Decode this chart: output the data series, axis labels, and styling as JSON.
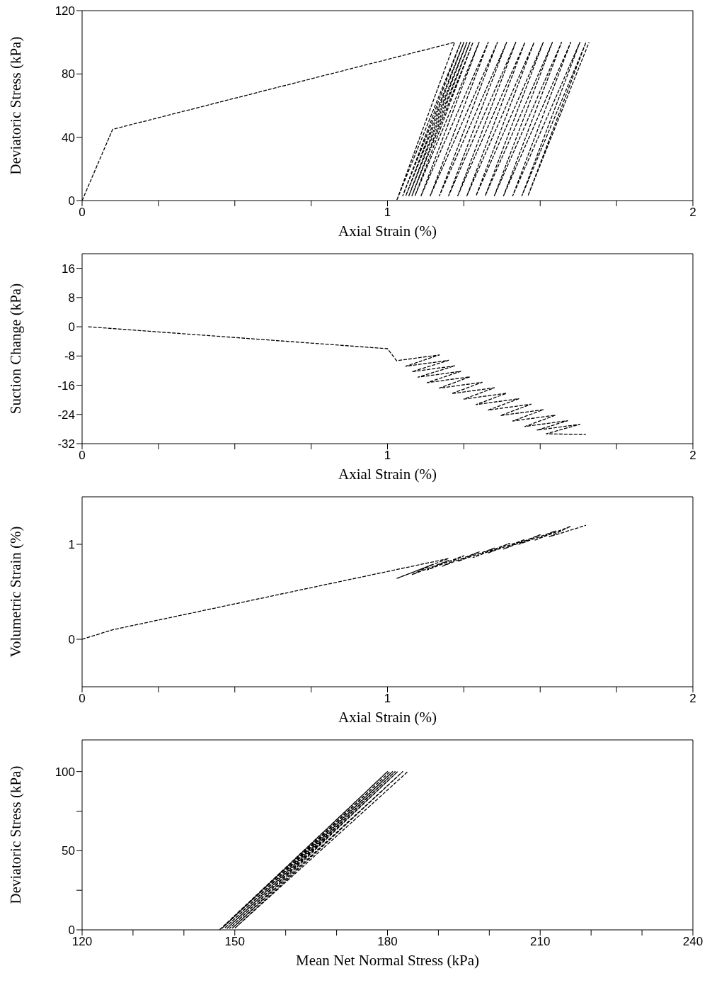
{
  "chart_data": [
    {
      "type": "line",
      "xlabel": "Axial Strain (%)",
      "ylabel": "Deviatoric Stress (kPa)",
      "xlim": [
        0,
        2
      ],
      "ylim": [
        0,
        120
      ],
      "xticks": [
        0,
        {
          "value": 0.25,
          "label": null
        },
        {
          "value": 0.5,
          "label": null
        },
        {
          "value": 0.75,
          "label": null
        },
        1,
        {
          "value": 1.25,
          "label": null
        },
        {
          "value": 1.5,
          "label": null
        },
        {
          "value": 1.75,
          "label": null
        },
        2
      ],
      "yticks": [
        0,
        40,
        80,
        120
      ],
      "line_style": "dashed",
      "marker": "none",
      "series": [
        {
          "color": "#000000",
          "x": [
            0,
            0.1,
            1.22,
            1.03,
            1.24,
            1.05,
            1.25,
            1.06,
            1.26,
            1.07,
            1.27,
            1.08,
            1.28,
            1.09,
            1.3,
            1.11,
            1.33,
            1.14,
            1.36,
            1.17,
            1.39,
            1.2,
            1.42,
            1.23,
            1.45,
            1.26,
            1.48,
            1.29,
            1.51,
            1.32,
            1.54,
            1.35,
            1.57,
            1.38,
            1.6,
            1.41,
            1.63,
            1.44,
            1.65,
            1.46,
            1.66
          ],
          "values": [
            0,
            45,
            100,
            0,
            100,
            3,
            100,
            3,
            100,
            3,
            100,
            3,
            100,
            3,
            100,
            3,
            100,
            3,
            100,
            3,
            100,
            3,
            100,
            3,
            100,
            3,
            100,
            3,
            100,
            3,
            100,
            3,
            100,
            3,
            100,
            3,
            100,
            3,
            100,
            3,
            100
          ]
        }
      ]
    },
    {
      "type": "line",
      "xlabel": "Axial Strain (%)",
      "ylabel": "Suction Change (kPa)",
      "xlim": [
        0,
        2
      ],
      "ylim": [
        -32,
        20
      ],
      "xticks": [
        0,
        {
          "value": 0.25,
          "label": null
        },
        {
          "value": 0.5,
          "label": null
        },
        {
          "value": 0.75,
          "label": null
        },
        1,
        {
          "value": 1.25,
          "label": null
        },
        {
          "value": 1.5,
          "label": null
        },
        {
          "value": 1.75,
          "label": null
        },
        2
      ],
      "yticks": [
        -32,
        -24,
        -16,
        -8,
        0,
        8,
        16
      ],
      "line_style": "dashed",
      "marker": "none",
      "series": [
        {
          "color": "#000000",
          "x": [
            0.02,
            1.0,
            1.03,
            1.17,
            1.06,
            1.2,
            1.08,
            1.22,
            1.1,
            1.24,
            1.13,
            1.27,
            1.17,
            1.31,
            1.21,
            1.35,
            1.25,
            1.39,
            1.29,
            1.43,
            1.33,
            1.47,
            1.37,
            1.51,
            1.41,
            1.55,
            1.45,
            1.59,
            1.49,
            1.63,
            1.52,
            1.65
          ],
          "values": [
            0,
            -6,
            -9.3,
            -7.7,
            -10.8,
            -9.2,
            -12.3,
            -10.7,
            -13.8,
            -12.2,
            -15.3,
            -13.7,
            -16.8,
            -15.2,
            -18.3,
            -16.7,
            -19.8,
            -18.2,
            -21.3,
            -19.7,
            -22.8,
            -21.2,
            -24.3,
            -22.7,
            -25.8,
            -24.2,
            -27.3,
            -25.7,
            -28.3,
            -26.7,
            -29.3,
            -29.5
          ]
        }
      ]
    },
    {
      "type": "line",
      "xlabel": "Axial Strain (%)",
      "ylabel": "Volumetric Strain (%)",
      "xlim": [
        0,
        2
      ],
      "ylim": [
        -0.5,
        1.5
      ],
      "xticks": [
        0,
        {
          "value": 0.25,
          "label": null
        },
        {
          "value": 0.5,
          "label": null
        },
        {
          "value": 0.75,
          "label": null
        },
        1,
        {
          "value": 1.25,
          "label": null
        },
        {
          "value": 1.5,
          "label": null
        },
        {
          "value": 1.75,
          "label": null
        },
        2
      ],
      "yticks": [
        0,
        1
      ],
      "line_style": "dashed",
      "marker": "none",
      "series": [
        {
          "color": "#000000",
          "x": [
            0,
            0.1,
            1.2,
            1.03,
            1.15,
            1.08,
            1.2,
            1.13,
            1.25,
            1.18,
            1.3,
            1.23,
            1.35,
            1.28,
            1.4,
            1.33,
            1.45,
            1.38,
            1.5,
            1.43,
            1.55,
            1.48,
            1.6,
            1.53,
            1.65
          ],
          "values": [
            0,
            0.1,
            0.85,
            0.64,
            0.79,
            0.68,
            0.83,
            0.73,
            0.88,
            0.77,
            0.92,
            0.82,
            0.96,
            0.86,
            1.01,
            0.91,
            1.05,
            0.95,
            1.1,
            1.0,
            1.14,
            1.04,
            1.19,
            1.08,
            1.2
          ]
        }
      ]
    },
    {
      "type": "line",
      "xlabel": "Mean Net Normal Stress (kPa)",
      "ylabel": "Deviatoric Stress (kPa)",
      "xlim": [
        120,
        240
      ],
      "ylim": [
        0,
        120
      ],
      "xticks": [
        120,
        {
          "value": 130,
          "label": null
        },
        {
          "value": 140,
          "label": null
        },
        150,
        {
          "value": 160,
          "label": null
        },
        {
          "value": 170,
          "label": null
        },
        180,
        {
          "value": 190,
          "label": null
        },
        {
          "value": 200,
          "label": null
        },
        210,
        {
          "value": 220,
          "label": null
        },
        {
          "value": 230,
          "label": null
        },
        240
      ],
      "yticks": [
        0,
        {
          "value": 25,
          "label": null
        },
        50,
        {
          "value": 75,
          "label": null
        },
        100
      ],
      "line_style": "dashed",
      "marker": "none",
      "series": [
        {
          "color": "#000000",
          "x": [
            147,
            180,
            147.5,
            180.5,
            148,
            181,
            148.5,
            181.5,
            149,
            182,
            149.5,
            183,
            150,
            184
          ],
          "values": [
            0,
            100,
            1,
            100,
            1,
            100,
            1,
            100,
            1,
            100,
            1,
            100,
            1,
            100
          ]
        }
      ]
    }
  ]
}
